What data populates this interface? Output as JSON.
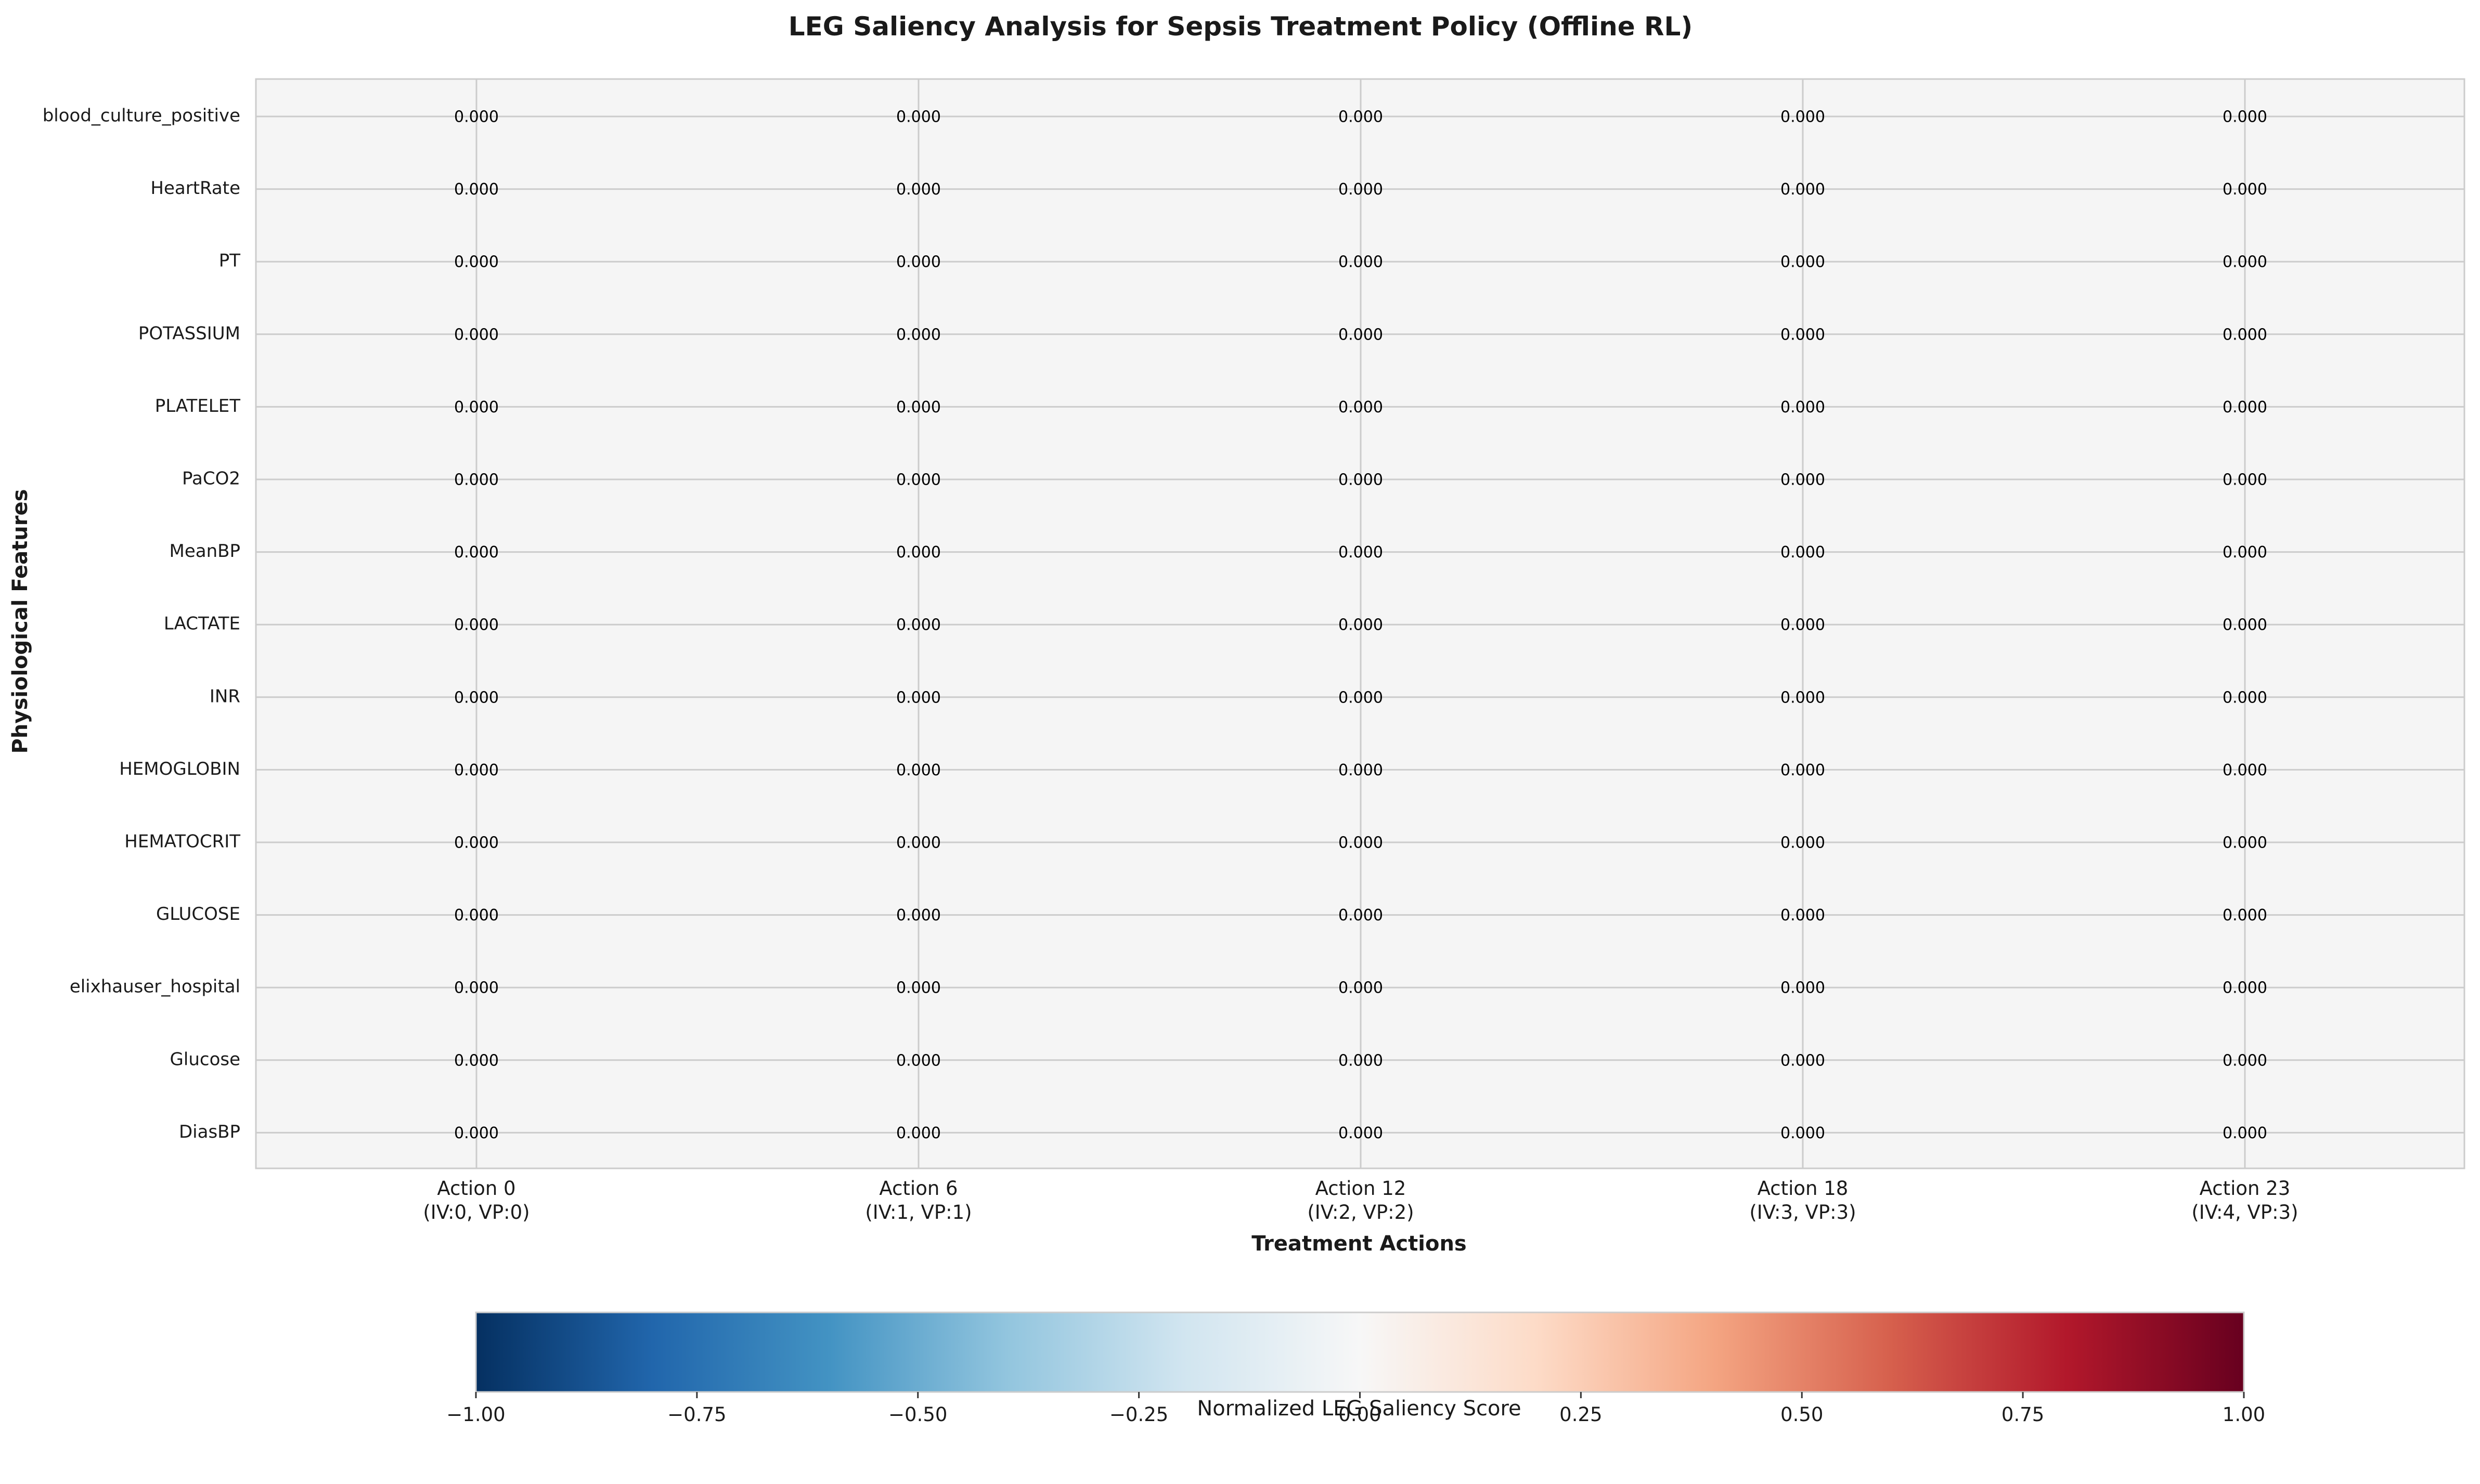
{
  "chart_data": {
    "type": "heatmap",
    "title": "LEG Saliency Analysis for Sepsis Treatment Policy (Offline RL)",
    "xlabel": "Treatment Actions",
    "ylabel": "Physiological Features",
    "x_categories": [
      {
        "line1": "Action 0",
        "line2": "(IV:0, VP:0)"
      },
      {
        "line1": "Action 6",
        "line2": "(IV:1, VP:1)"
      },
      {
        "line1": "Action 12",
        "line2": "(IV:2, VP:2)"
      },
      {
        "line1": "Action 18",
        "line2": "(IV:3, VP:3)"
      },
      {
        "line1": "Action 23",
        "line2": "(IV:4, VP:3)"
      }
    ],
    "y_categories": [
      "blood_culture_positive",
      "HeartRate",
      "PT",
      "POTASSIUM",
      "PLATELET",
      "PaCO2",
      "MeanBP",
      "LACTATE",
      "INR",
      "HEMOGLOBIN",
      "HEMATOCRIT",
      "GLUCOSE",
      "elixhauser_hospital",
      "Glucose",
      "DiasBP"
    ],
    "values": [
      [
        0,
        0,
        0,
        0,
        0
      ],
      [
        0,
        0,
        0,
        0,
        0
      ],
      [
        0,
        0,
        0,
        0,
        0
      ],
      [
        0,
        0,
        0,
        0,
        0
      ],
      [
        0,
        0,
        0,
        0,
        0
      ],
      [
        0,
        0,
        0,
        0,
        0
      ],
      [
        0,
        0,
        0,
        0,
        0
      ],
      [
        0,
        0,
        0,
        0,
        0
      ],
      [
        0,
        0,
        0,
        0,
        0
      ],
      [
        0,
        0,
        0,
        0,
        0
      ],
      [
        0,
        0,
        0,
        0,
        0
      ],
      [
        0,
        0,
        0,
        0,
        0
      ],
      [
        0,
        0,
        0,
        0,
        0
      ],
      [
        0,
        0,
        0,
        0,
        0
      ],
      [
        0,
        0,
        0,
        0,
        0
      ]
    ],
    "value_format": "0.000",
    "grid": true,
    "colorbar": {
      "label": "Normalized LEG Saliency Score",
      "orientation": "horizontal",
      "placement": "bottom",
      "range": [
        -1,
        1
      ],
      "ticks": [
        -1,
        -0.75,
        -0.5,
        -0.25,
        0,
        0.25,
        0.5,
        0.75,
        1
      ],
      "tick_labels": [
        "−1.00",
        "−0.75",
        "−0.50",
        "−0.25",
        "0.00",
        "0.25",
        "0.50",
        "0.75",
        "1.00"
      ],
      "colormap": "RdBu_r",
      "stops": [
        "#053061",
        "#2166ac",
        "#4393c3",
        "#92c5de",
        "#d1e5f0",
        "#f7f7f7",
        "#fddbc7",
        "#f4a582",
        "#d6604d",
        "#b2182b",
        "#67001f"
      ]
    },
    "colors": {
      "plot_background": "#f5f5f5",
      "gridline": "#cccccc",
      "frame": "#cccccc",
      "text": "#1a1a1a"
    }
  }
}
